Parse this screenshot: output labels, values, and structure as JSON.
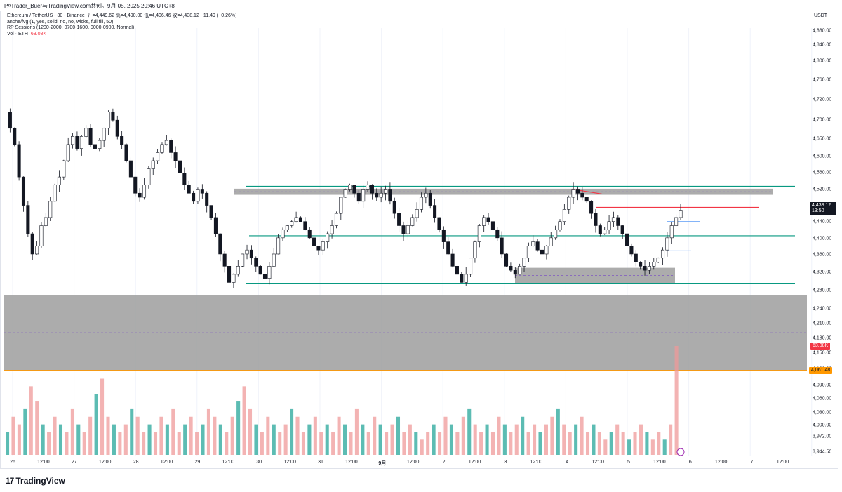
{
  "header": {
    "title": "PATrader_Buer与TradingView.com共创。9月 05, 2025 20:46 UTC+8"
  },
  "legend": {
    "line1": "Ethereum / TetherUS · 30 · Binance",
    "ohlc": "开=4,449.62  高=4,490.00  低=4,406.46  收=4,438.12  −11.49 (−0.26%)",
    "line2": "anche/fvg (1, yes, solid, no, no, wicks, full fill, 50)",
    "line3": "RP Sessions (1200-2000, 0700-1600, 0000-0900, Normal)",
    "line4_label": "Vol · ETH",
    "line4_value": "63.08K"
  },
  "axis": {
    "unit": "USDT",
    "y_ticks": [
      "4,880.00",
      "4,840.00",
      "4,800.00",
      "4,760.00",
      "4,720.00",
      "4,700.00",
      "4,650.00",
      "4,600.00",
      "4,560.00",
      "4,520.00",
      "4,480.00",
      "4,440.00",
      "4,400.00",
      "4,360.00",
      "4,320.00",
      "4,280.00",
      "4,240.00",
      "4,210.00",
      "4,180.00",
      "4,150.00",
      "4,120.00",
      "4,090.00",
      "4,060.00",
      "4,030.00",
      "4,000.00",
      "3,972.00",
      "3,944.50",
      "3,918.50",
      "3,892.50"
    ],
    "x_ticks": [
      "26",
      "12:00",
      "27",
      "12:00",
      "28",
      "12:00",
      "29",
      "12:00",
      "30",
      "12:00",
      "31",
      "12:00",
      "9月",
      "12:00",
      "2",
      "12:00",
      "3",
      "12:00",
      "4",
      "12:00",
      "5",
      "12:00",
      "6",
      "12:00",
      "7",
      "12:00"
    ]
  },
  "badges": {
    "last_price": "4,438.12",
    "countdown": "13:50",
    "volume": "63.08K",
    "level": "4,061.48"
  },
  "branding": {
    "logo_text": "TradingView"
  },
  "colors": {
    "up": "#089981",
    "down": "#131722",
    "zone": "#9e9e9e",
    "support": "#089981",
    "resist": "#f23645",
    "level": "#ff9800"
  },
  "chart_data": {
    "type": "candlestick",
    "symbol": "Ethereum / TetherUS",
    "interval": "30",
    "exchange": "Binance",
    "x_range": [
      "2025-08-26",
      "2025-09-05"
    ],
    "ylim": [
      3892.5,
      4880
    ],
    "price_path": [
      4680,
      4640,
      4600,
      4520,
      4450,
      4380,
      4330,
      4350,
      4400,
      4420,
      4460,
      4500,
      4520,
      4560,
      4600,
      4620,
      4590,
      4620,
      4640,
      4600,
      4590,
      4610,
      4640,
      4680,
      4660,
      4620,
      4600,
      4560,
      4520,
      4480,
      4470,
      4500,
      4540,
      4560,
      4580,
      4600,
      4610,
      4580,
      4560,
      4530,
      4500,
      4480,
      4460,
      4490,
      4480,
      4450,
      4420,
      4380,
      4330,
      4300,
      4260,
      4280,
      4300,
      4330,
      4340,
      4320,
      4300,
      4280,
      4270,
      4300,
      4330,
      4370,
      4390,
      4400,
      4410,
      4420,
      4410,
      4390,
      4370,
      4350,
      4340,
      4360,
      4380,
      4400,
      4430,
      4470,
      4490,
      4500,
      4480,
      4460,
      4490,
      4500,
      4480,
      4470,
      4480,
      4490,
      4460,
      4430,
      4400,
      4380,
      4400,
      4420,
      4440,
      4470,
      4480,
      4450,
      4420,
      4390,
      4360,
      4330,
      4300,
      4280,
      4260,
      4280,
      4320,
      4360,
      4400,
      4420,
      4410,
      4390,
      4370,
      4330,
      4300,
      4290,
      4280,
      4300,
      4320,
      4350,
      4360,
      4340,
      4330,
      4350,
      4370,
      4390,
      4410,
      4440,
      4470,
      4490,
      4480,
      4470,
      4460,
      4430,
      4400,
      4380,
      4390,
      4410,
      4420,
      4400,
      4380,
      4350,
      4330,
      4310,
      4300,
      4290,
      4300,
      4310,
      4320,
      4340,
      4370,
      4400,
      4420,
      4438.12
    ],
    "last_ohlc": {
      "open": 4449.62,
      "high": 4490.0,
      "low": 4406.46,
      "close": 4438.12,
      "change": -11.49,
      "change_pct": -0.26
    },
    "zones": [
      {
        "type": "resistance",
        "from": 4476,
        "to": 4491
      },
      {
        "type": "demand",
        "from": 4258,
        "to": 4296
      },
      {
        "type": "demand",
        "from": 4061.48,
        "to": 4230
      }
    ],
    "levels": [
      {
        "price": 4497,
        "color": "#089981"
      },
      {
        "price": 4375,
        "color": "#089981"
      },
      {
        "price": 4258,
        "color": "#089981"
      },
      {
        "price": 4445,
        "color": "#f23645"
      },
      {
        "price": 4061.48,
        "color": "#ff9800"
      }
    ],
    "volume": {
      "last": "63.08K",
      "series": [
        0.3,
        0.5,
        0.4,
        0.6,
        0.9,
        0.7,
        0.4,
        0.3,
        0.5,
        0.4,
        0.3,
        0.6,
        0.4,
        0.3,
        0.5,
        0.8,
        1.0,
        0.5,
        0.4,
        0.3,
        0.4,
        0.6,
        0.5,
        0.3,
        0.4,
        0.3,
        0.5,
        0.4,
        0.6,
        0.3,
        0.4,
        0.5,
        0.3,
        0.4,
        0.6,
        0.5,
        0.4,
        0.3,
        0.5,
        0.7,
        0.9,
        0.6,
        0.4,
        0.3,
        0.5,
        0.4,
        0.3,
        0.4,
        0.6,
        0.5,
        0.3,
        0.4,
        0.5,
        0.3,
        0.4,
        0.3,
        0.5,
        0.4,
        0.3,
        0.6,
        0.4,
        0.3,
        0.5,
        0.4,
        0.3,
        0.4,
        0.5,
        0.3,
        0.4,
        0.3,
        0.2,
        0.3,
        0.4,
        0.3,
        0.5,
        0.4,
        0.3,
        0.5,
        0.6,
        0.4,
        0.3,
        0.4,
        0.3,
        0.5,
        0.4,
        0.3,
        0.4,
        0.5,
        0.3,
        0.4,
        0.3,
        0.4,
        0.5,
        0.6,
        0.4,
        0.3,
        0.4,
        0.5,
        0.3,
        0.4,
        0.3,
        0.2,
        0.3,
        0.4,
        0.3,
        0.2,
        0.3,
        0.4,
        0.3,
        0.2,
        0.3,
        0.2,
        0.4,
        1.0
      ]
    }
  }
}
